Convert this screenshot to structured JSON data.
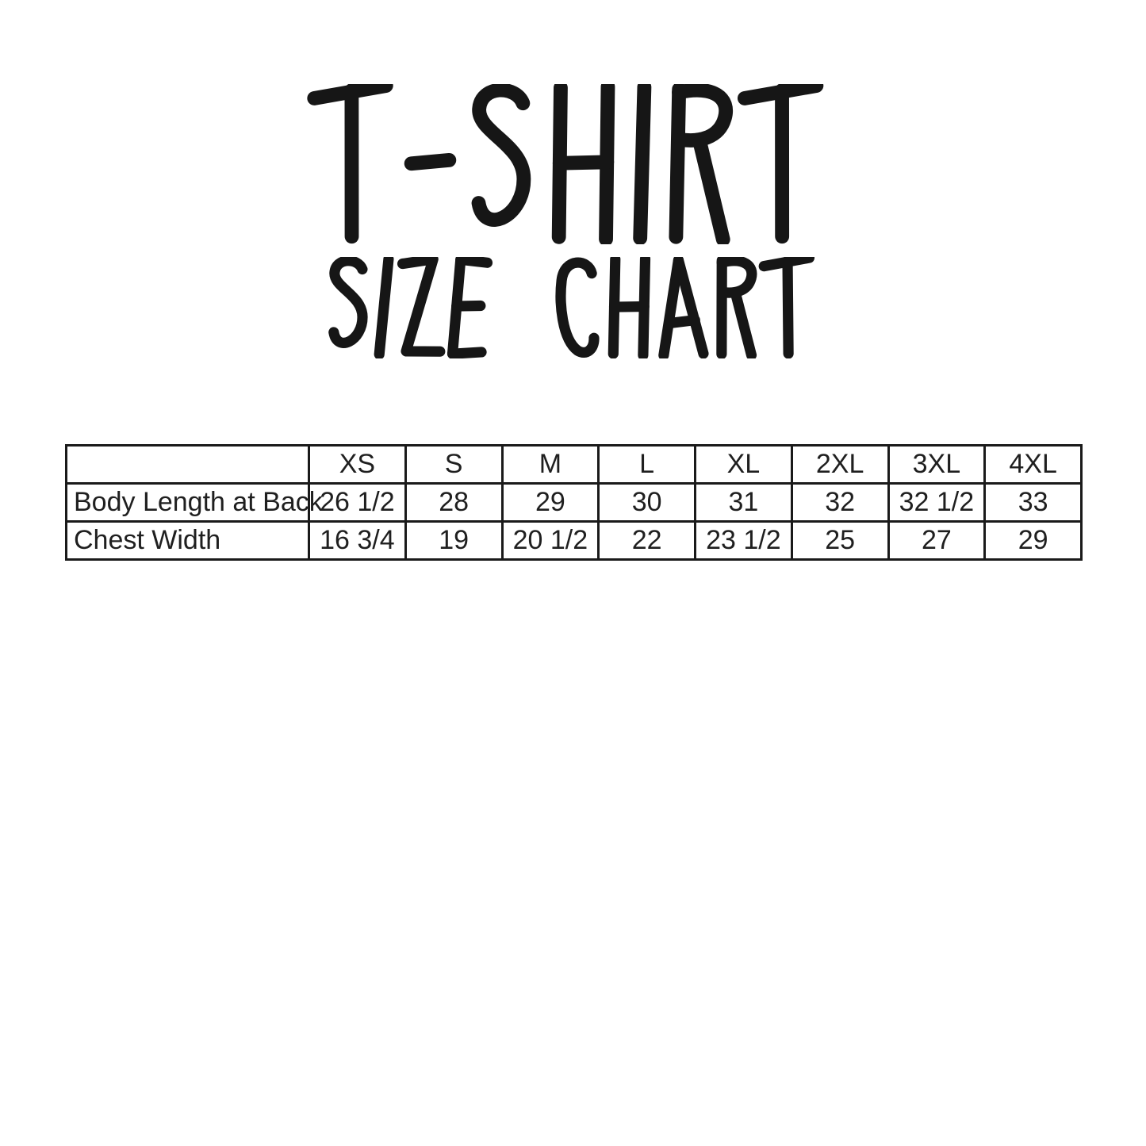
{
  "page": {
    "background": "#ffffff",
    "ink": "#161616"
  },
  "title": {
    "line1": "T-SHIRT",
    "line2": "SIZE CHART"
  },
  "size_table": {
    "corner_label": "",
    "columns": [
      "XS",
      "S",
      "M",
      "L",
      "XL",
      "2XL",
      "3XL",
      "4XL"
    ],
    "rows": [
      {
        "label": "Body Length at Back",
        "values": [
          "26 1/2",
          "28",
          "29",
          "30",
          "31",
          "32",
          "32 1/2",
          "33"
        ]
      },
      {
        "label": "Chest Width",
        "values": [
          "16 3/4",
          "19",
          "20 1/2",
          "22",
          "23 1/2",
          "25",
          "27",
          "29"
        ]
      }
    ]
  },
  "chart_data": {
    "type": "table",
    "title": "T-SHIRT SIZE CHART",
    "categories": [
      "XS",
      "S",
      "M",
      "L",
      "XL",
      "2XL",
      "3XL",
      "4XL"
    ],
    "series": [
      {
        "name": "Body Length at Back",
        "values": [
          26.5,
          28,
          29,
          30,
          31,
          32,
          32.5,
          33
        ]
      },
      {
        "name": "Chest Width",
        "values": [
          16.75,
          19,
          20.5,
          22,
          23.5,
          25,
          27,
          29
        ]
      }
    ],
    "legend_position": "none",
    "grid": true
  }
}
